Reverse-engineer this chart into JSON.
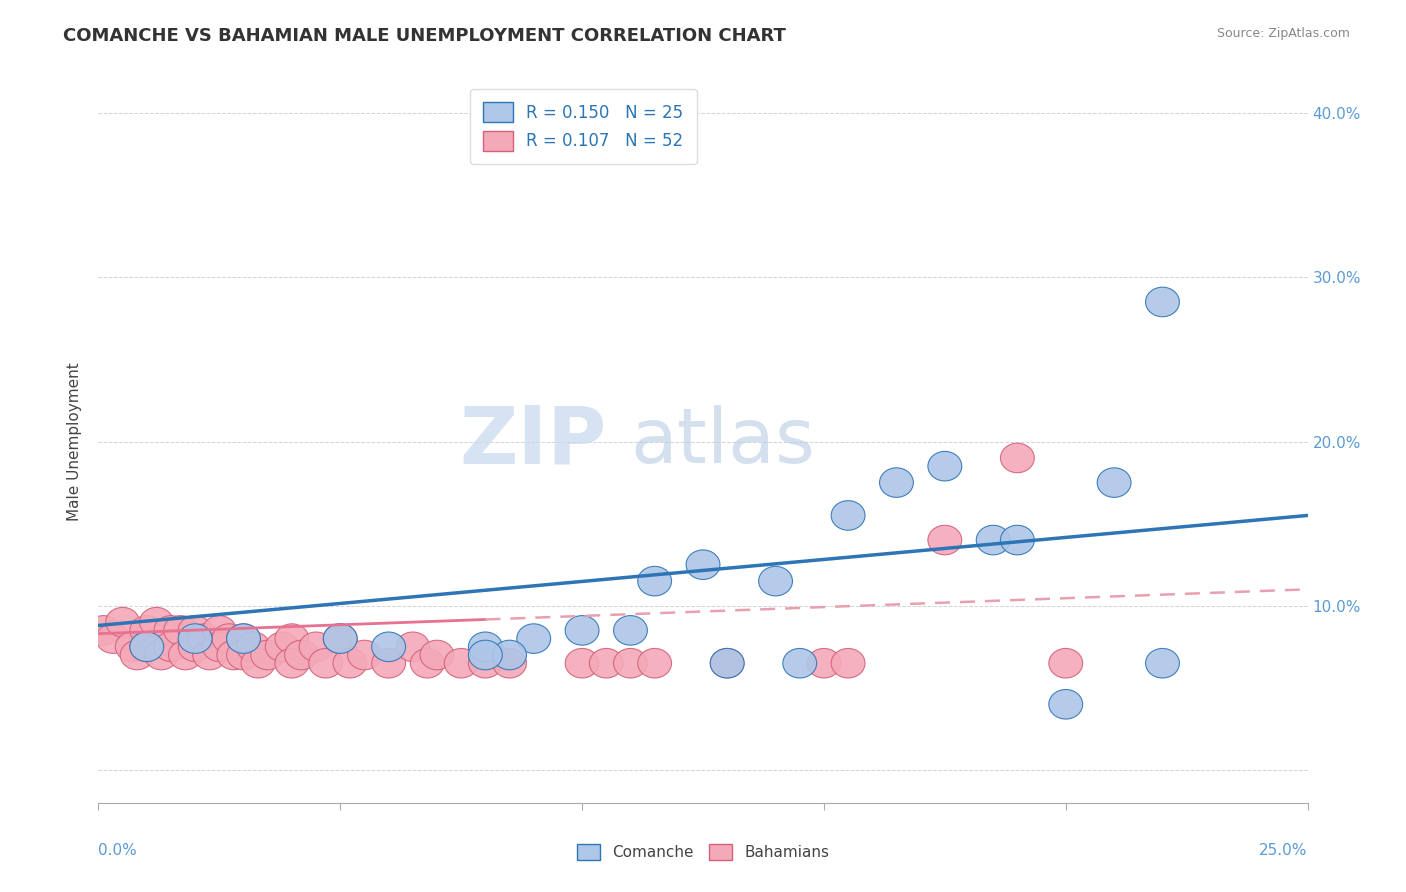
{
  "title": "COMANCHE VS BAHAMIAN MALE UNEMPLOYMENT CORRELATION CHART",
  "source": "Source: ZipAtlas.com",
  "ylabel": "Male Unemployment",
  "xlim": [
    0.0,
    0.25
  ],
  "ylim": [
    -0.02,
    0.42
  ],
  "ytick_values": [
    0.0,
    0.1,
    0.2,
    0.3,
    0.4
  ],
  "ytick_labels": [
    "",
    "10.0%",
    "20.0%",
    "30.0%",
    "40.0%"
  ],
  "comanche_R": 0.15,
  "comanche_N": 25,
  "bahamians_R": 0.107,
  "bahamians_N": 52,
  "comanche_color": "#aec6e8",
  "bahamians_color": "#f4a9b8",
  "trend_comanche_color": "#2e75b6",
  "trend_bahamians_solid_color": "#e87090",
  "trend_bahamians_dash_color": "#e8a0b0",
  "watermark_color": "#d5e5f5",
  "background_color": "#ffffff",
  "grid_color": "#c8c8c8",
  "comanche_x": [
    0.01,
    0.02,
    0.03,
    0.05,
    0.06,
    0.08,
    0.09,
    0.1,
    0.11,
    0.115,
    0.125,
    0.14,
    0.155,
    0.165,
    0.175,
    0.185,
    0.19,
    0.21,
    0.22,
    0.13,
    0.085,
    0.145,
    0.08,
    0.22,
    0.2
  ],
  "comanche_y": [
    0.075,
    0.08,
    0.08,
    0.08,
    0.075,
    0.075,
    0.08,
    0.085,
    0.085,
    0.115,
    0.125,
    0.115,
    0.155,
    0.175,
    0.185,
    0.14,
    0.14,
    0.175,
    0.285,
    0.065,
    0.07,
    0.065,
    0.07,
    0.065,
    0.04
  ],
  "bahamians_x": [
    0.001,
    0.003,
    0.005,
    0.007,
    0.008,
    0.01,
    0.01,
    0.012,
    0.013,
    0.015,
    0.015,
    0.017,
    0.018,
    0.02,
    0.02,
    0.022,
    0.023,
    0.025,
    0.025,
    0.027,
    0.028,
    0.03,
    0.03,
    0.032,
    0.033,
    0.035,
    0.038,
    0.04,
    0.04,
    0.042,
    0.045,
    0.047,
    0.05,
    0.052,
    0.055,
    0.06,
    0.065,
    0.068,
    0.07,
    0.075,
    0.08,
    0.085,
    0.1,
    0.105,
    0.11,
    0.115,
    0.13,
    0.15,
    0.155,
    0.175,
    0.19,
    0.2
  ],
  "bahamians_y": [
    0.085,
    0.08,
    0.09,
    0.075,
    0.07,
    0.085,
    0.075,
    0.09,
    0.07,
    0.085,
    0.075,
    0.085,
    0.07,
    0.085,
    0.075,
    0.08,
    0.07,
    0.085,
    0.075,
    0.08,
    0.07,
    0.08,
    0.07,
    0.075,
    0.065,
    0.07,
    0.075,
    0.08,
    0.065,
    0.07,
    0.075,
    0.065,
    0.08,
    0.065,
    0.07,
    0.065,
    0.075,
    0.065,
    0.07,
    0.065,
    0.065,
    0.065,
    0.065,
    0.065,
    0.065,
    0.065,
    0.065,
    0.065,
    0.065,
    0.14,
    0.19,
    0.065
  ],
  "trend_c_x0": 0.0,
  "trend_c_y0": 0.088,
  "trend_c_x1": 0.25,
  "trend_c_y1": 0.155,
  "trend_b_x0": 0.0,
  "trend_b_y0": 0.083,
  "trend_b_x1": 0.25,
  "trend_b_y1": 0.11,
  "trend_b_solid_end": 0.08
}
